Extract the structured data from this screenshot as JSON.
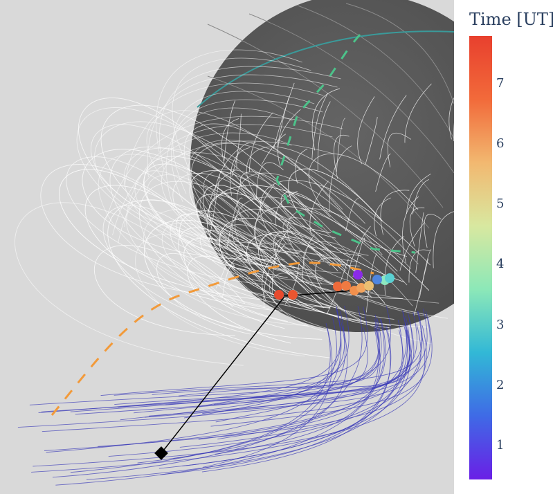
{
  "colorbar": {
    "title": "Time [UT]",
    "ticks": [
      1,
      2,
      3,
      4,
      5,
      6,
      7
    ],
    "range": [
      0.45,
      7.8
    ],
    "colorscale": "rainbow",
    "colors": [
      "#6a1fe6",
      "#3f6ae6",
      "#32b8d6",
      "#8ce8b8",
      "#d8e8a0",
      "#f2b870",
      "#f26a3a",
      "#e8402e"
    ]
  },
  "chart_data": {
    "type": "scatter",
    "title": "",
    "colorbar_title": "Time [UT]",
    "color_range": [
      0.45,
      7.8
    ],
    "points": [
      {
        "t": 7.7,
        "color": "#e84a2e"
      },
      {
        "t": 7.5,
        "color": "#ea5530"
      },
      {
        "t": 7.2,
        "color": "#ee6a3a"
      },
      {
        "t": 7.0,
        "color": "#f07a42"
      },
      {
        "t": 6.6,
        "color": "#f2904c"
      },
      {
        "t": 6.2,
        "color": "#f2a45e"
      },
      {
        "t": 5.8,
        "color": "#eabf72"
      },
      {
        "t": 4.2,
        "color": "#8ee8c0"
      },
      {
        "t": 3.3,
        "color": "#5ad0d2"
      },
      {
        "t": 2.0,
        "color": "#4f86e0"
      },
      {
        "t": 0.6,
        "color": "#8a2be8"
      }
    ]
  },
  "scene": {
    "background": "#d9d9d9",
    "planet_color": "#555555",
    "field_line_color": "#ffffff",
    "open_line_color": "#3a3ab8",
    "trajectory_color": "#f29a3a",
    "footprint_color": "#4cc38a",
    "marker_color": "#000000"
  }
}
